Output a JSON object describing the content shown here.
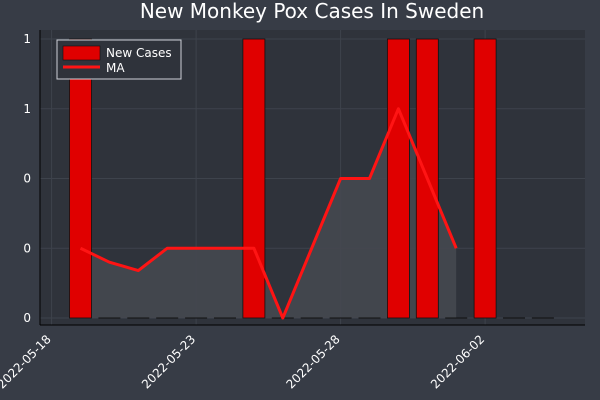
{
  "chart_data": {
    "type": "bar",
    "title": "New Monkey Pox Cases In Sweden",
    "xlabel": "",
    "ylabel": "",
    "x": [
      "2022-05-19",
      "2022-05-20",
      "2022-05-21",
      "2022-05-22",
      "2022-05-23",
      "2022-05-24",
      "2022-05-25",
      "2022-05-26",
      "2022-05-27",
      "2022-05-28",
      "2022-05-29",
      "2022-05-30",
      "2022-05-31",
      "2022-06-01",
      "2022-06-02",
      "2022-06-03",
      "2022-06-04"
    ],
    "xticks": [
      "2022-05-18",
      "2022-05-23",
      "2022-05-28",
      "2022-06-02"
    ],
    "yticks": [
      "0",
      "0",
      "0",
      "1",
      "1"
    ],
    "ytick_values": [
      0,
      0.25,
      0.5,
      0.75,
      1
    ],
    "ylim": [
      0,
      1
    ],
    "grid": true,
    "legend_position": "top-left",
    "series": [
      {
        "name": "New Cases",
        "type": "bar",
        "color": "#e00000",
        "values": [
          1,
          0,
          0,
          0,
          0,
          0,
          1,
          0,
          0,
          0,
          0,
          1,
          1,
          0,
          1,
          0,
          0
        ]
      },
      {
        "name": "MA",
        "type": "line",
        "color": "#ff1414",
        "fill_color": "#454850",
        "values": [
          0.25,
          0.2,
          0.17,
          0.25,
          0.25,
          0.25,
          0.25,
          0,
          0.25,
          0.5,
          0.5,
          0.75,
          0.5,
          0.25,
          null,
          null,
          null
        ]
      }
    ]
  }
}
